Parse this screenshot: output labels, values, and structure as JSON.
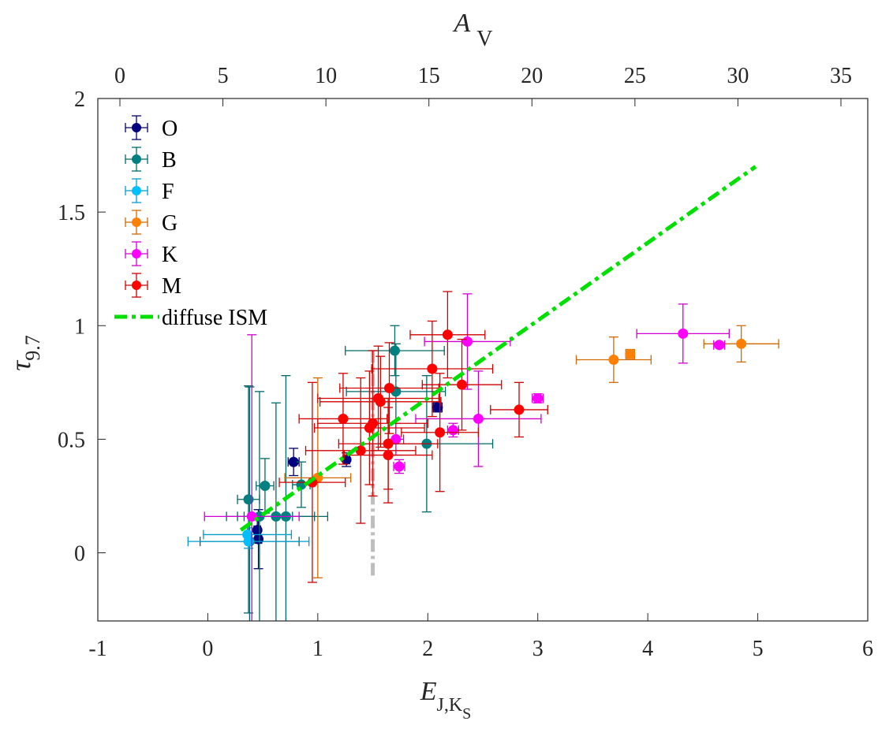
{
  "chart_data": {
    "type": "scatter",
    "title": "",
    "xlabel": {
      "main": "E",
      "sub": "J,K",
      "subsub": "S"
    },
    "ylabel": {
      "main": "τ",
      "sub": "9.7"
    },
    "top_xlabel": {
      "main": "A",
      "sub": "V"
    },
    "xlim": [
      -1,
      6
    ],
    "ylim": [
      -0.3,
      2
    ],
    "top_xlim": [
      0,
      35
    ],
    "xticks": [
      "-1",
      "0",
      "1",
      "2",
      "3",
      "4",
      "5",
      "6"
    ],
    "xtick_values": [
      -1,
      0,
      1,
      2,
      3,
      4,
      5,
      6
    ],
    "yticks": [
      "0",
      "0.5",
      "1",
      "1.5",
      "2"
    ],
    "ytick_values": [
      0,
      0.5,
      1,
      1.5,
      2
    ],
    "top_xticks": [
      "0",
      "5",
      "10",
      "15",
      "20",
      "25",
      "30",
      "35"
    ],
    "top_xtick_values": [
      0,
      5,
      10,
      15,
      20,
      25,
      30,
      35
    ],
    "top_axis_scale_note": "A_V axis scaled such that A_V=0 at E=-0.8 and A_V=35 at E≈5.72",
    "grid": false,
    "legend_position": "top-left",
    "series": [
      {
        "name": "O",
        "color": "#000080",
        "points": [
          {
            "x": 0.78,
            "y": 0.4,
            "xerr": 0.05,
            "yerr": 0.06
          },
          {
            "x": 0.45,
            "y": 0.1,
            "xerr": 0.03,
            "yerr": 0.05
          },
          {
            "x": 0.46,
            "y": 0.06,
            "xerr": 0.03,
            "yerr": 0.13
          },
          {
            "x": 1.26,
            "y": 0.41,
            "xerr": 0.03,
            "yerr": 0.03
          },
          {
            "x": 2.09,
            "y": 0.64,
            "xerr": 0.04,
            "yerr": 0.02
          }
        ]
      },
      {
        "name": "B",
        "color": "#008080",
        "points": [
          {
            "x": 0.37,
            "y": 0.235,
            "xerr": 0.1,
            "yerr": 0.5
          },
          {
            "x": 0.52,
            "y": 0.295,
            "xerr": 0.08,
            "yerr": 0.12
          },
          {
            "x": 0.85,
            "y": 0.3,
            "xerr": 0.08,
            "yerr": 0.1
          },
          {
            "x": 0.47,
            "y": 0.16,
            "xerr": 0.3,
            "yerr": 0.55
          },
          {
            "x": 0.62,
            "y": 0.16,
            "xerr": 0.35,
            "yerr": 0.5
          },
          {
            "x": 0.71,
            "y": 0.16,
            "xerr": 0.38,
            "yerr": 0.62
          },
          {
            "x": 0.38,
            "y": 0.05,
            "xerr": 0.45,
            "yerr": 0.68
          },
          {
            "x": 1.7,
            "y": 0.89,
            "xerr": 0.45,
            "yerr": 0.11
          },
          {
            "x": 1.71,
            "y": 0.71,
            "xerr": 0.45,
            "yerr": 0.21
          },
          {
            "x": 1.99,
            "y": 0.48,
            "xerr": 0.6,
            "yerr": 0.3
          }
        ]
      },
      {
        "name": "F",
        "color": "#00BFFF",
        "points": [
          {
            "x": 0.36,
            "y": 0.08,
            "xerr": 0.4,
            "yerr": 0.03
          },
          {
            "x": 0.37,
            "y": 0.05,
            "xerr": 0.55,
            "yerr": 0.03
          }
        ]
      },
      {
        "name": "G",
        "color": "#FF8000",
        "points": [
          {
            "x": 1.0,
            "y": 0.33,
            "xerr": 0.3,
            "yerr": 0.44
          },
          {
            "x": 3.69,
            "y": 0.85,
            "xerr": 0.34,
            "yerr": 0.1
          },
          {
            "x": 3.84,
            "y": 0.875,
            "xerr": 0.04,
            "yerr": 0.02
          },
          {
            "x": 4.85,
            "y": 0.92,
            "xerr": 0.34,
            "yerr": 0.08
          }
        ]
      },
      {
        "name": "K",
        "color": "#FF00FF",
        "points": [
          {
            "x": 0.4,
            "y": 0.16,
            "xerr": 0.43,
            "yerr": 0.8
          },
          {
            "x": 1.71,
            "y": 0.5,
            "xerr": 0.07,
            "yerr": 0.07
          },
          {
            "x": 1.74,
            "y": 0.38,
            "xerr": 0.05,
            "yerr": 0.03
          },
          {
            "x": 2.23,
            "y": 0.54,
            "xerr": 0.05,
            "yerr": 0.03
          },
          {
            "x": 2.36,
            "y": 0.93,
            "xerr": 0.39,
            "yerr": 0.21
          },
          {
            "x": 2.46,
            "y": 0.59,
            "xerr": 0.57,
            "yerr": 0.21
          },
          {
            "x": 3.0,
            "y": 0.68,
            "xerr": 0.05,
            "yerr": 0.02
          },
          {
            "x": 4.32,
            "y": 0.965,
            "xerr": 0.42,
            "yerr": 0.13
          },
          {
            "x": 4.65,
            "y": 0.915,
            "xerr": 0.05,
            "yerr": 0.01
          }
        ]
      },
      {
        "name": "M",
        "color": "#FF0000",
        "points": [
          {
            "x": 0.95,
            "y": 0.31,
            "xerr": 0.3,
            "yerr": 0.44
          },
          {
            "x": 1.23,
            "y": 0.59,
            "xerr": 0.4,
            "yerr": 0.2
          },
          {
            "x": 1.39,
            "y": 0.45,
            "xerr": 0.5,
            "yerr": 0.32
          },
          {
            "x": 1.5,
            "y": 0.57,
            "xerr": 0.5,
            "yerr": 0.32
          },
          {
            "x": 1.47,
            "y": 0.55,
            "xerr": 0.5,
            "yerr": 0.25
          },
          {
            "x": 1.55,
            "y": 0.68,
            "xerr": 0.55,
            "yerr": 0.23
          },
          {
            "x": 1.57,
            "y": 0.665,
            "xerr": 0.55,
            "yerr": 0.2
          },
          {
            "x": 1.65,
            "y": 0.725,
            "xerr": 0.45,
            "yerr": 0.2
          },
          {
            "x": 1.64,
            "y": 0.48,
            "xerr": 0.45,
            "yerr": 0.2
          },
          {
            "x": 1.64,
            "y": 0.43,
            "xerr": 0.4,
            "yerr": 0.21
          },
          {
            "x": 2.04,
            "y": 0.81,
            "xerr": 0.55,
            "yerr": 0.21
          },
          {
            "x": 2.11,
            "y": 0.53,
            "xerr": 0.35,
            "yerr": 0.26
          },
          {
            "x": 2.18,
            "y": 0.96,
            "xerr": 0.34,
            "yerr": 0.19
          },
          {
            "x": 2.31,
            "y": 0.74,
            "xerr": 0.36,
            "yerr": 0.2
          },
          {
            "x": 2.83,
            "y": 0.63,
            "xerr": 0.26,
            "yerr": 0.12
          }
        ]
      }
    ],
    "lines": [
      {
        "name": "diffuse ISM",
        "color": "#00E000",
        "style": "dash-dot",
        "x": [
          0.3,
          4.98
        ],
        "y": [
          0.1,
          1.7
        ]
      },
      {
        "name": "reference-vertical",
        "color": "#BEBEBE",
        "style": "dash-dot",
        "x": [
          1.5,
          1.5
        ],
        "y": [
          -0.1,
          0.89
        ],
        "in_legend": false
      }
    ],
    "legend": [
      "O",
      "B",
      "F",
      "G",
      "K",
      "M",
      "diffuse ISM"
    ]
  }
}
